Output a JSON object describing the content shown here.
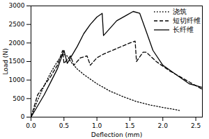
{
  "chart_data": {
    "type": "line",
    "x_label": "Deflection (mm)",
    "y_label": "Load (N)",
    "xlim": [
      0,
      2.6
    ],
    "ylim": [
      0,
      3000
    ],
    "xticks": [
      {
        "value": 0,
        "label": "0.0"
      },
      0.5,
      {
        "value": 1,
        "label": "1.0"
      },
      1.5,
      {
        "value": 2,
        "label": "2.0"
      },
      2.5
    ],
    "yticks": [
      0,
      500,
      1000,
      1500,
      2000,
      2500,
      3000
    ],
    "legend": "top-right",
    "series": [
      {
        "name": "浇筑",
        "color": "#000000",
        "line_style": "dotted",
        "x": [
          0,
          0.1,
          0.2,
          0.3,
          0.4,
          0.48,
          0.55,
          0.6,
          0.7,
          0.8,
          1.0,
          1.2,
          1.4,
          1.6,
          1.8,
          2.0,
          2.2,
          2.25
        ],
        "values": [
          0,
          450,
          850,
          1200,
          1500,
          1700,
          1650,
          1500,
          1300,
          1150,
          900,
          700,
          550,
          420,
          330,
          260,
          200,
          180
        ]
      },
      {
        "name": "短切纤维",
        "color": "#000000",
        "line_style": "dashed",
        "x": [
          0,
          0.05,
          0.1,
          0.2,
          0.3,
          0.4,
          0.48,
          0.5,
          0.55,
          0.6,
          0.65,
          0.75,
          0.85,
          0.9,
          1.0,
          1.1,
          1.3,
          1.5,
          1.58,
          1.6,
          1.7,
          1.75,
          1.9,
          2.1,
          2.3,
          2.5,
          2.6
        ],
        "values": [
          0,
          300,
          600,
          850,
          1100,
          1400,
          1800,
          1450,
          1550,
          1650,
          1400,
          1600,
          1650,
          1400,
          1600,
          1700,
          1850,
          2000,
          2050,
          1500,
          1750,
          1750,
          1500,
          1250,
          1050,
          850,
          750
        ]
      },
      {
        "name": "长纤维",
        "color": "#000000",
        "line_style": "solid",
        "x": [
          0,
          0.1,
          0.2,
          0.3,
          0.4,
          0.5,
          0.55,
          0.6,
          0.7,
          0.8,
          0.9,
          1.0,
          1.08,
          1.1,
          1.15,
          1.3,
          1.45,
          1.55,
          1.65,
          1.75,
          1.85,
          2.0,
          2.2,
          2.4,
          2.6
        ],
        "values": [
          0,
          300,
          600,
          950,
          1300,
          1800,
          1450,
          1600,
          1900,
          2250,
          2500,
          2700,
          2800,
          2200,
          2300,
          2600,
          2750,
          2850,
          2800,
          2300,
          1800,
          1400,
          1150,
          900,
          800
        ]
      }
    ]
  }
}
